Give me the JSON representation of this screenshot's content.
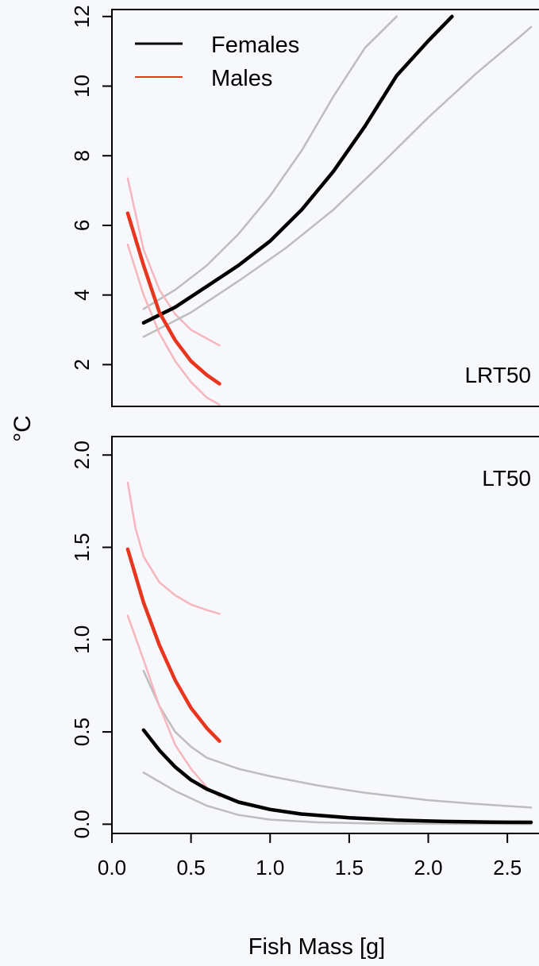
{
  "y_axis_label": "°C",
  "x_axis_label": "Fish Mass [g]",
  "legend": {
    "females": "Females",
    "males": "Males"
  },
  "colors": {
    "females": "#000000",
    "females_ci": "#bdbdbd",
    "males": "#e8351e",
    "males_ci": "#f5b7bd"
  },
  "chart_data": [
    {
      "type": "line",
      "panel_label": "LRT50",
      "xlim": [
        0.0,
        2.7
      ],
      "ylim": [
        0.8,
        12.2
      ],
      "y_ticks": [
        2,
        4,
        6,
        8,
        10,
        12
      ],
      "x_ticks": [],
      "legend_position": "top-left",
      "series": [
        {
          "name": "Females",
          "role": "fit",
          "x": [
            0.2,
            0.4,
            0.6,
            0.8,
            1.0,
            1.2,
            1.4,
            1.6,
            1.8,
            2.0,
            2.15
          ],
          "y": [
            3.2,
            3.65,
            4.25,
            4.85,
            5.55,
            6.45,
            7.55,
            8.85,
            10.3,
            11.3,
            12.0
          ]
        },
        {
          "role": "ci-upper",
          "group": "Females",
          "x": [
            0.2,
            0.4,
            0.6,
            0.8,
            1.0,
            1.2,
            1.4,
            1.6,
            1.8
          ],
          "y": [
            3.6,
            4.15,
            4.85,
            5.75,
            6.85,
            8.15,
            9.7,
            11.1,
            12.0
          ]
        },
        {
          "role": "ci-lower",
          "group": "Females",
          "x": [
            0.2,
            0.5,
            0.8,
            1.1,
            1.4,
            1.7,
            2.0,
            2.3,
            2.6,
            2.65
          ],
          "y": [
            2.8,
            3.5,
            4.4,
            5.35,
            6.45,
            7.75,
            9.1,
            10.35,
            11.5,
            11.7
          ]
        },
        {
          "name": "Males",
          "role": "fit",
          "x": [
            0.1,
            0.2,
            0.3,
            0.4,
            0.5,
            0.6,
            0.68
          ],
          "y": [
            6.35,
            4.85,
            3.5,
            2.7,
            2.1,
            1.7,
            1.45
          ]
        },
        {
          "role": "ci-upper",
          "group": "Males",
          "x": [
            0.1,
            0.2,
            0.3,
            0.4,
            0.5,
            0.6,
            0.68
          ],
          "y": [
            7.35,
            5.3,
            4.15,
            3.45,
            3.0,
            2.75,
            2.55
          ]
        },
        {
          "role": "ci-lower",
          "group": "Males",
          "x": [
            0.1,
            0.2,
            0.3,
            0.4,
            0.5,
            0.6,
            0.68
          ],
          "y": [
            5.45,
            4.0,
            2.9,
            2.1,
            1.5,
            1.05,
            0.85
          ]
        }
      ]
    },
    {
      "type": "line",
      "panel_label": "LT50",
      "xlim": [
        0.0,
        2.7
      ],
      "ylim": [
        -0.05,
        2.1
      ],
      "y_ticks": [
        0.0,
        0.5,
        1.0,
        1.5,
        2.0
      ],
      "x_ticks": [
        0.0,
        0.5,
        1.0,
        1.5,
        2.0,
        2.5
      ],
      "series": [
        {
          "name": "Females",
          "role": "fit",
          "x": [
            0.2,
            0.3,
            0.4,
            0.5,
            0.6,
            0.8,
            1.0,
            1.2,
            1.5,
            1.8,
            2.1,
            2.4,
            2.65
          ],
          "y": [
            0.51,
            0.4,
            0.31,
            0.24,
            0.19,
            0.12,
            0.08,
            0.055,
            0.035,
            0.022,
            0.015,
            0.011,
            0.01
          ]
        },
        {
          "role": "ci-upper",
          "group": "Females",
          "x": [
            0.2,
            0.3,
            0.4,
            0.5,
            0.6,
            0.8,
            1.0,
            1.3,
            1.6,
            2.0,
            2.3,
            2.65
          ],
          "y": [
            0.83,
            0.64,
            0.5,
            0.42,
            0.36,
            0.3,
            0.26,
            0.21,
            0.17,
            0.13,
            0.11,
            0.09
          ]
        },
        {
          "role": "ci-lower",
          "group": "Females",
          "x": [
            0.2,
            0.4,
            0.6,
            0.8,
            1.0,
            1.3,
            1.6,
            2.0,
            2.65
          ],
          "y": [
            0.28,
            0.18,
            0.1,
            0.05,
            0.025,
            0.01,
            0.005,
            0.002,
            0.001
          ]
        },
        {
          "name": "Males",
          "role": "fit",
          "x": [
            0.1,
            0.2,
            0.3,
            0.4,
            0.5,
            0.6,
            0.68
          ],
          "y": [
            1.49,
            1.2,
            0.97,
            0.78,
            0.63,
            0.52,
            0.45
          ]
        },
        {
          "role": "ci-upper",
          "group": "Males",
          "x": [
            0.1,
            0.15,
            0.2,
            0.3,
            0.4,
            0.5,
            0.6,
            0.68
          ],
          "y": [
            1.85,
            1.6,
            1.45,
            1.31,
            1.24,
            1.19,
            1.16,
            1.14
          ]
        },
        {
          "role": "ci-lower",
          "group": "Males",
          "x": [
            0.1,
            0.2,
            0.3,
            0.4,
            0.5,
            0.6,
            0.68
          ],
          "y": [
            1.13,
            0.89,
            0.64,
            0.43,
            0.3,
            0.2,
            0.15
          ]
        }
      ]
    }
  ]
}
